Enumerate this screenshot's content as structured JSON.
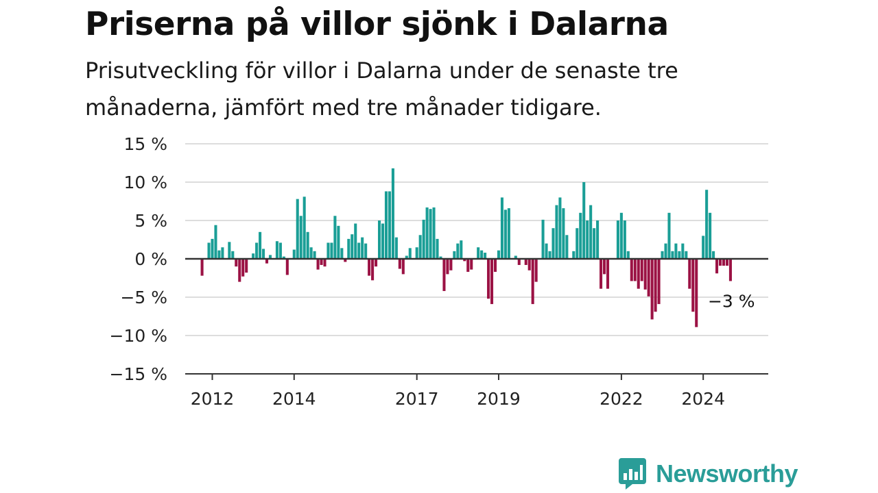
{
  "header": {
    "title": "Priserna på villor sjönk i Dalarna",
    "subtitle": "Prisutveckling för villor i Dalarna under de senaste tre månaderna, jämfört med tre månader tidigare."
  },
  "brand": {
    "name": "Newsworthy",
    "logo_icon": "bar-chart-speech-bubble-icon",
    "color": "#2a9d98"
  },
  "colors": {
    "positive": "#1a9e96",
    "negative": "#9b1244",
    "gridline": "#dddddd",
    "zero_line": "#333333"
  },
  "chart_data": {
    "type": "bar",
    "title": "Priserna på villor sjönk i Dalarna",
    "subtitle": "Prisutveckling för villor i Dalarna under de senaste tre månaderna, jämfört med tre månader tidigare.",
    "xlabel": "",
    "ylabel": "",
    "x_unit": "month",
    "x_start": "2011-10",
    "x_end": "2024-12",
    "x_ticks": [
      {
        "value": 2012,
        "label": "2012"
      },
      {
        "value": 2014,
        "label": "2014"
      },
      {
        "value": 2017,
        "label": "2017"
      },
      {
        "value": 2019,
        "label": "2019"
      },
      {
        "value": 2022,
        "label": "2022"
      },
      {
        "value": 2024,
        "label": "2024"
      }
    ],
    "y_ticks": [
      {
        "value": 15,
        "label": "15 %"
      },
      {
        "value": 10,
        "label": "10 %"
      },
      {
        "value": 5,
        "label": "5 %"
      },
      {
        "value": 0,
        "label": "0 %"
      },
      {
        "value": -5,
        "label": "−5 %"
      },
      {
        "value": -10,
        "label": "−10 %"
      },
      {
        "value": -15,
        "label": "−15 %"
      }
    ],
    "ylim": [
      -15,
      15
    ],
    "grid": true,
    "last_value_label": "−3 %",
    "series": [
      {
        "values": [
          -2.2,
          0,
          2.1,
          2.6,
          4.4,
          1.1,
          1.5,
          0,
          2.2,
          1.0,
          -1.0,
          -3.0,
          -2.3,
          -1.8,
          0,
          0.7,
          2.1,
          3.5,
          1.3,
          -0.6,
          0.5,
          0,
          2.3,
          2.1,
          0.3,
          -2.1,
          0,
          1.2,
          7.8,
          5.6,
          8.1,
          3.5,
          1.5,
          1.0,
          -1.4,
          -0.8,
          -1.0,
          2.1,
          2.1,
          5.6,
          4.3,
          1.4,
          -0.4,
          2.6,
          3.2,
          4.6,
          2.1,
          2.8,
          2.0,
          -2.2,
          -2.8,
          -1.0,
          5.0,
          4.6,
          8.8,
          8.8,
          11.8,
          2.8,
          -1.3,
          -2.0,
          0.4,
          1.4,
          0,
          1.5,
          3.1,
          5.1,
          6.7,
          6.5,
          6.7,
          2.6,
          0.3,
          -4.2,
          -2.0,
          -1.5,
          1.0,
          2.0,
          2.4,
          -0.3,
          -1.7,
          -1.4,
          0,
          1.5,
          1.1,
          0.8,
          -5.2,
          -5.9,
          -1.7,
          1.1,
          8.0,
          6.4,
          6.6,
          0,
          0.4,
          -0.8,
          0,
          -0.8,
          -1.5,
          -5.9,
          -3.0,
          0,
          5.1,
          2.0,
          1.0,
          4.0,
          7.0,
          8.0,
          6.6,
          3.1,
          0,
          1.0,
          4.0,
          6.0,
          10.0,
          5.0,
          7.0,
          4.0,
          5.0,
          -3.9,
          -2.0,
          -3.9,
          0,
          0,
          5.0,
          6.0,
          5.0,
          1.0,
          -2.9,
          -2.9,
          -3.9,
          -2.9,
          -4.0,
          -4.9,
          -7.9,
          -6.9,
          -5.9,
          1.0,
          2.0,
          6.0,
          1.0,
          2.0,
          1.0,
          2.0,
          1.0,
          -3.9,
          -6.9,
          -8.9,
          0,
          3.0,
          9.0,
          6.0,
          1.0,
          -1.9,
          -0.9,
          -0.9,
          -0.9,
          -2.9
        ]
      }
    ]
  }
}
